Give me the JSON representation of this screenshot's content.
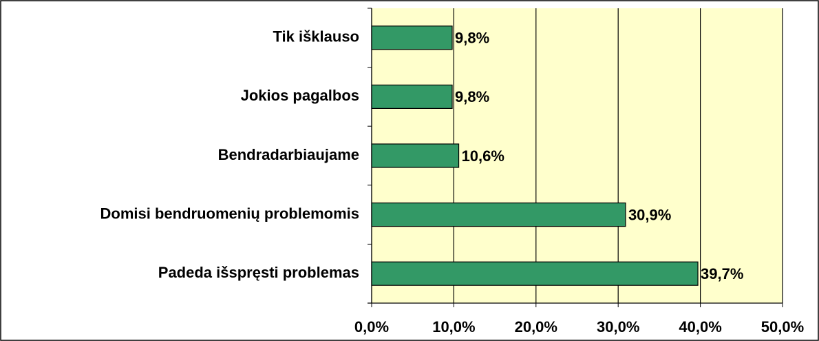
{
  "chart_data": {
    "type": "bar",
    "orientation": "horizontal",
    "categories": [
      "Tik išklauso",
      "Jokios pagalbos",
      "Bendradarbiaujame",
      "Domisi bendruomenių problemomis",
      "Padeda išspręsti problemas"
    ],
    "values": [
      9.8,
      9.8,
      10.6,
      30.9,
      39.7
    ],
    "value_labels": [
      "9,8%",
      "9,8%",
      "10,6%",
      "30,9%",
      "39,7%"
    ],
    "color": "#339966",
    "xlim": [
      0,
      50
    ],
    "xticks": [
      {
        "value": 0,
        "label": "0,0%"
      },
      {
        "value": 10,
        "label": "10,0%"
      },
      {
        "value": 20,
        "label": "20,0%"
      },
      {
        "value": 30,
        "label": "30,0%"
      },
      {
        "value": 40,
        "label": "40,0%"
      },
      {
        "value": 50,
        "label": "50,0%"
      }
    ],
    "grid": true
  }
}
